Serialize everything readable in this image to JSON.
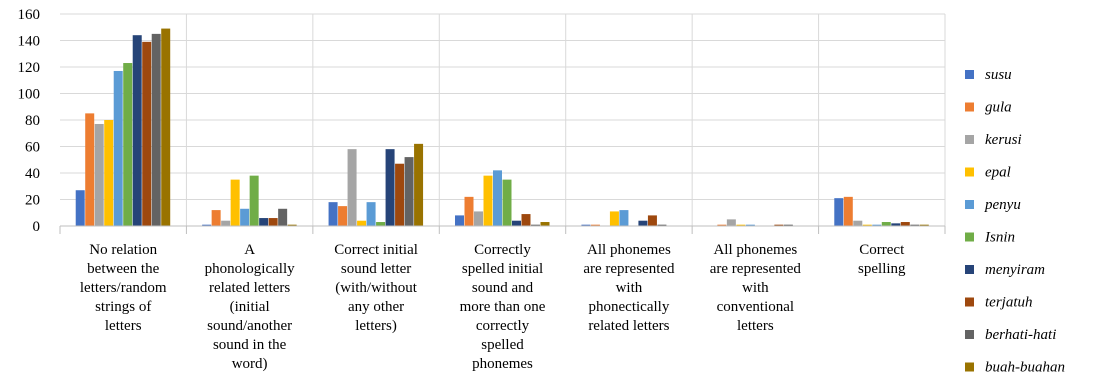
{
  "chart_data": {
    "type": "bar",
    "title": "",
    "xlabel": "",
    "ylabel": "",
    "ylim": [
      0,
      160
    ],
    "yticks": [
      0,
      20,
      40,
      60,
      80,
      100,
      120,
      140,
      160
    ],
    "grid": true,
    "legend_position": "right",
    "categories": [
      [
        "No relation",
        "between the",
        "letters/random",
        "strings of",
        "letters"
      ],
      [
        "A",
        "phonologically",
        "related letters",
        "(initial",
        "sound/another",
        "sound in the",
        "word)"
      ],
      [
        "Correct initial",
        "sound letter",
        "(with/without",
        "any other",
        "letters)"
      ],
      [
        "Correctly",
        "spelled initial",
        "sound and",
        "more than one",
        "correctly",
        "spelled",
        "phonemes"
      ],
      [
        "All phonemes",
        "are represented",
        "with",
        "phonectically",
        "related letters"
      ],
      [
        "All phonemes",
        "are represented",
        "with",
        "conventional",
        "letters"
      ],
      [
        "Correct",
        "spelling"
      ]
    ],
    "series": [
      {
        "name": "susu",
        "color": "#4472C4",
        "values": [
          27,
          1,
          18,
          8,
          1,
          0,
          21
        ]
      },
      {
        "name": "gula",
        "color": "#ED7D31",
        "values": [
          85,
          12,
          15,
          22,
          1,
          1,
          22
        ]
      },
      {
        "name": "kerusi",
        "color": "#A5A5A5",
        "values": [
          77,
          4,
          58,
          11,
          0,
          5,
          4
        ]
      },
      {
        "name": "epal",
        "color": "#FFC000",
        "values": [
          80,
          35,
          4,
          38,
          11,
          1,
          1
        ]
      },
      {
        "name": "penyu",
        "color": "#5B9BD5",
        "values": [
          117,
          13,
          18,
          42,
          12,
          1,
          1
        ]
      },
      {
        "name": "Isnin",
        "color": "#70AD47",
        "values": [
          123,
          38,
          3,
          35,
          0,
          0,
          3
        ]
      },
      {
        "name": "menyiram",
        "color": "#264478",
        "values": [
          144,
          6,
          58,
          4,
          4,
          0,
          2
        ]
      },
      {
        "name": "terjatuh",
        "color": "#9E480E",
        "values": [
          139,
          6,
          47,
          9,
          8,
          1,
          3
        ]
      },
      {
        "name": "berhati-hati",
        "color": "#636363",
        "values": [
          145,
          13,
          52,
          1,
          1,
          1,
          1
        ]
      },
      {
        "name": "buah-buahan",
        "color": "#997300",
        "values": [
          149,
          1,
          62,
          3,
          0,
          0,
          1
        ]
      }
    ]
  }
}
